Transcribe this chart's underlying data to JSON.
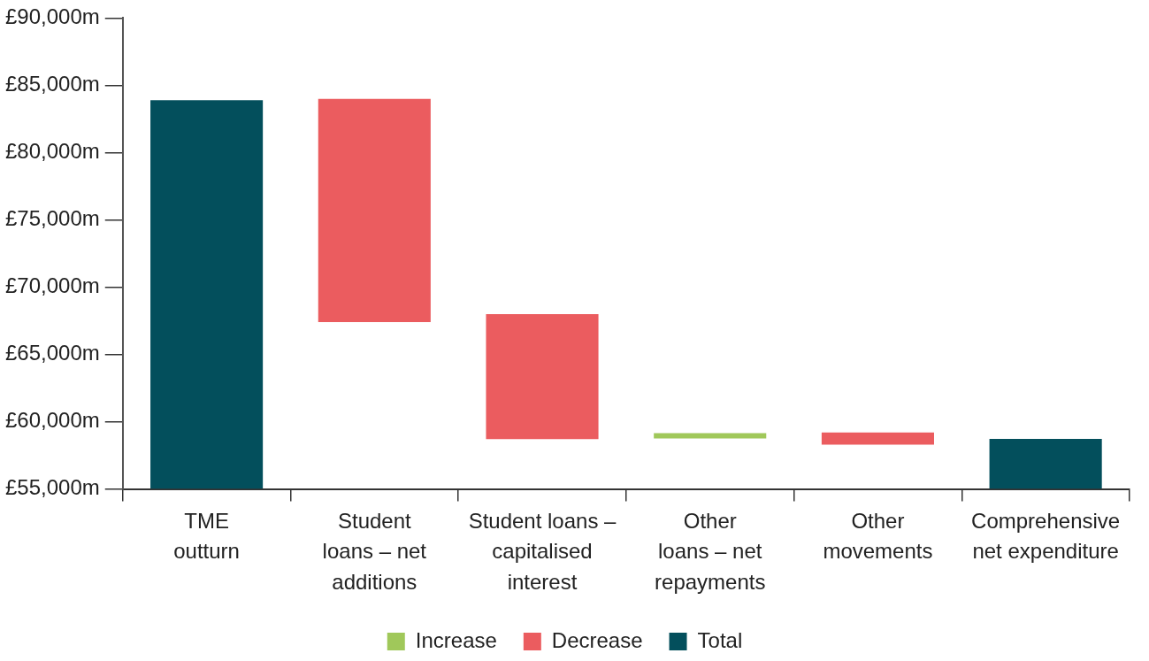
{
  "chart_data": {
    "type": "bar",
    "categories": [
      "TME\noutturn",
      "Student\nloans – net\nadditions",
      "Student loans –\ncapitalised\ninterest",
      "Other\nloans – net\nrepayments",
      "Other\nmovements",
      "Comprehensive\nnet expenditure"
    ],
    "series": [
      {
        "name": "Increase",
        "color": "#a0c85a",
        "base": [
          null,
          null,
          null,
          58750,
          null,
          null
        ],
        "values": [
          null,
          null,
          null,
          400,
          null,
          null
        ]
      },
      {
        "name": "Decrease",
        "color": "#eb5c5f",
        "base": [
          null,
          67400,
          58700,
          null,
          58300,
          null
        ],
        "values": [
          null,
          16600,
          9300,
          null,
          900,
          null
        ]
      },
      {
        "name": "Total",
        "color": "#034f5c",
        "base": [
          55000,
          null,
          null,
          null,
          null,
          55000
        ],
        "values": [
          28900,
          null,
          null,
          null,
          null,
          3730
        ]
      }
    ],
    "ylim": [
      55000,
      90000
    ],
    "yticks": [
      {
        "value": 55000,
        "label": "£55,000m"
      },
      {
        "value": 60000,
        "label": "£60,000m"
      },
      {
        "value": 65000,
        "label": "£65,000m"
      },
      {
        "value": 70000,
        "label": "£70,000m"
      },
      {
        "value": 75000,
        "label": "£75,000m"
      },
      {
        "value": 80000,
        "label": "£80,000m"
      },
      {
        "value": 85000,
        "label": "£85,000m"
      },
      {
        "value": 90000,
        "label": "£90,000m"
      }
    ],
    "grid": false,
    "legend": "bottom"
  }
}
